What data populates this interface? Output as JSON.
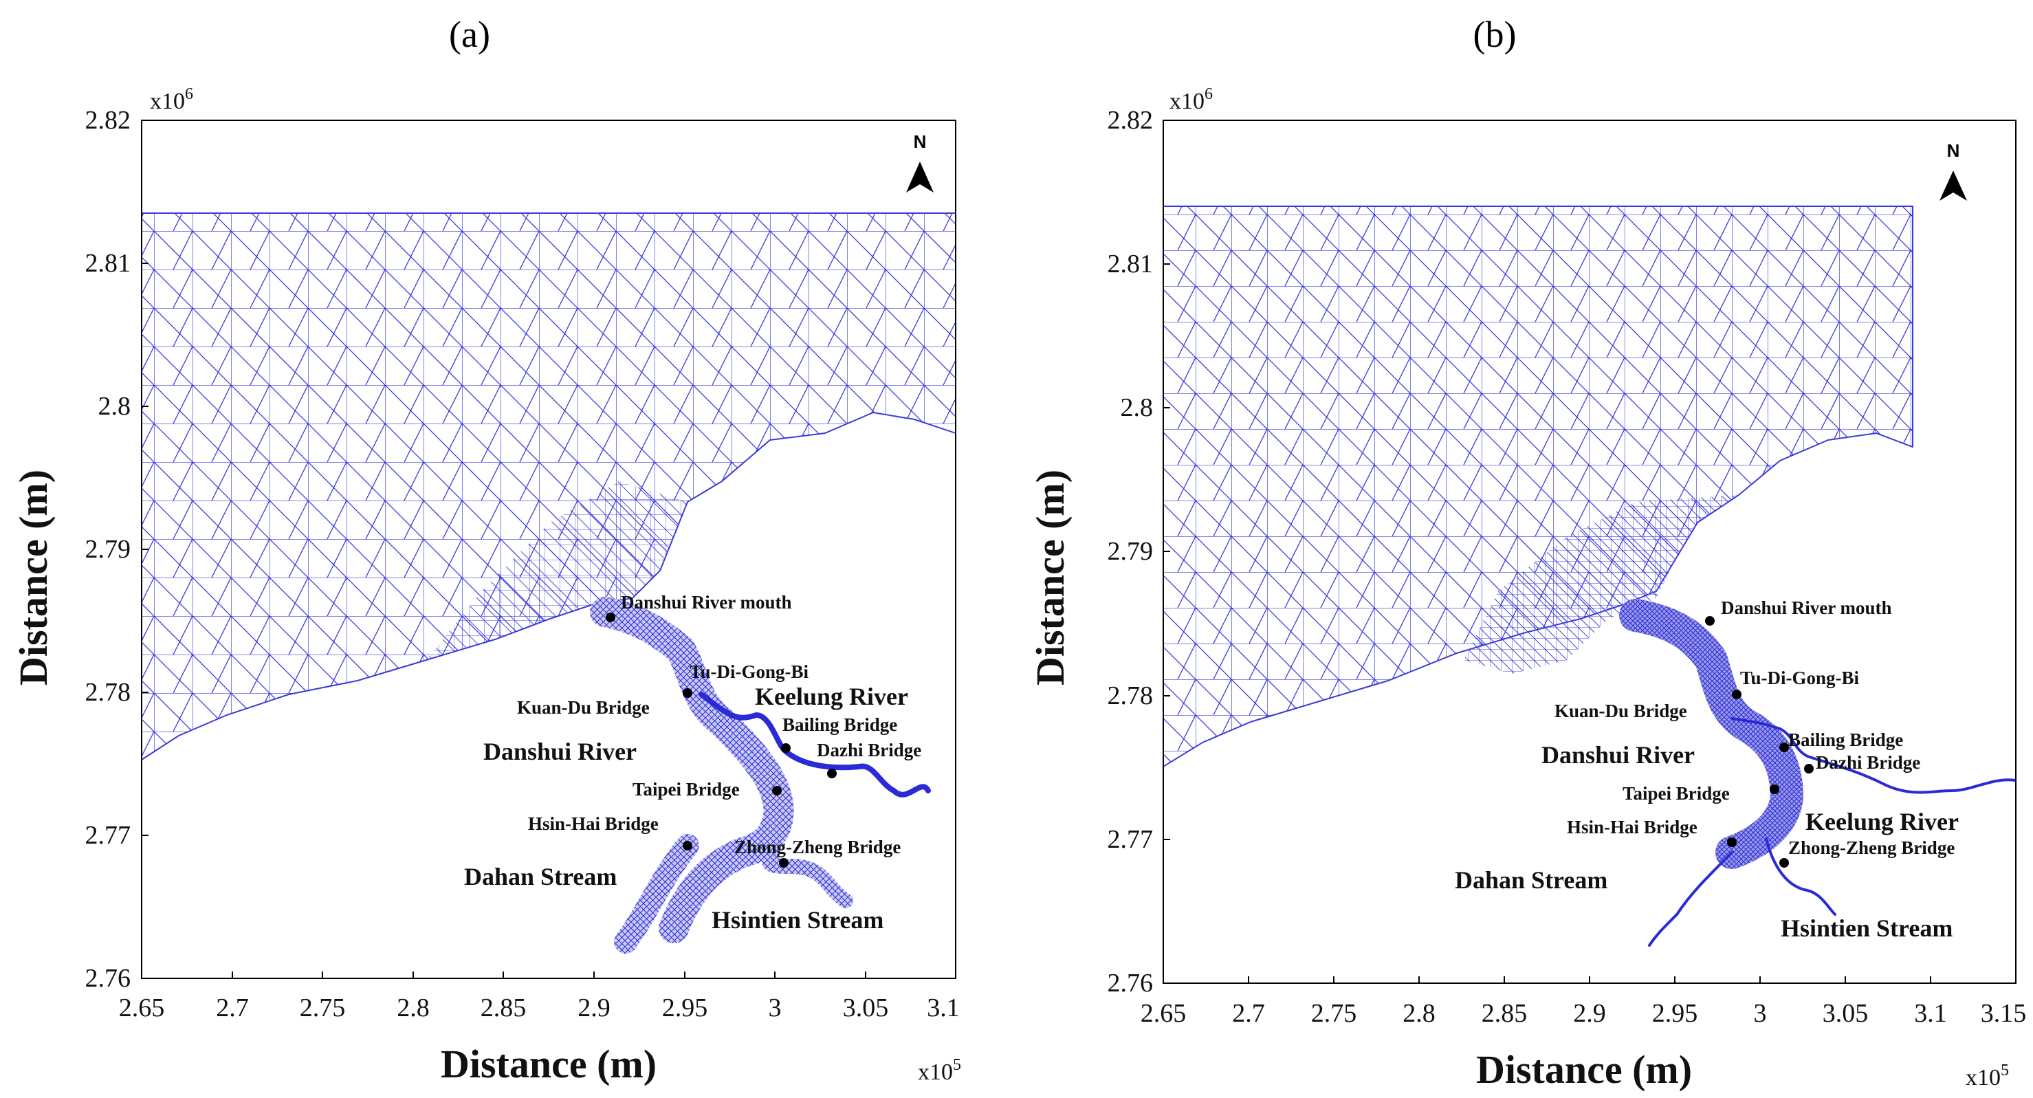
{
  "figure": {
    "panels": [
      {
        "letter": "(a)",
        "x_title": "Distance (m)",
        "y_title": "Distance (m)",
        "x_multiplier": "x10",
        "x_multiplier_exp": "5",
        "y_multiplier": "x10",
        "y_multiplier_exp": "6",
        "x_ticks": [
          "2.65",
          "2.7",
          "2.75",
          "2.8",
          "2.85",
          "2.9",
          "2.95",
          "3",
          "3.05",
          "3.1"
        ],
        "y_ticks": [
          "2.82",
          "2.81",
          "2.8",
          "2.79",
          "2.78",
          "2.77",
          "2.76"
        ],
        "north": "N",
        "labels": {
          "river_mouth": "Danshui River mouth",
          "tu_di": "Tu-Di-Gong-Bi",
          "kuan_du": "Kuan-Du Bridge",
          "keelung": "Keelung River",
          "bailing": "Bailing Bridge",
          "dazhi": "Dazhi Bridge",
          "danshui": "Danshui River",
          "taipei": "Taipei Bridge",
          "hsin_hai": "Hsin-Hai Bridge",
          "zhong_zheng": "Zhong-Zheng Bridge",
          "dahan": "Dahan Stream",
          "hsintien": "Hsintien Stream"
        }
      },
      {
        "letter": "(b)",
        "x_title": "Distance (m)",
        "y_title": "Distance (m)",
        "x_multiplier": "x10",
        "x_multiplier_exp": "5",
        "y_multiplier": "x10",
        "y_multiplier_exp": "6",
        "x_ticks": [
          "2.65",
          "2.7",
          "2.75",
          "2.8",
          "2.85",
          "2.9",
          "2.95",
          "3",
          "3.05",
          "3.1",
          "3.15"
        ],
        "y_ticks": [
          "2.82",
          "2.81",
          "2.8",
          "2.79",
          "2.78",
          "2.77",
          "2.76"
        ],
        "north": "N",
        "labels": {
          "river_mouth": "Danshui River mouth",
          "tu_di": "Tu-Di-Gong-Bi",
          "kuan_du": "Kuan-Du Bridge",
          "keelung": "Keelung River",
          "bailing": "Bailing Bridge",
          "dazhi": "Dazhi Bridge",
          "danshui": "Danshui River",
          "taipei": "Taipei Bridge",
          "hsin_hai": "Hsin-Hai Bridge",
          "zhong_zheng": "Zhong-Zheng Bridge",
          "dahan": "Dahan Stream",
          "hsintien": "Hsintien Stream"
        }
      }
    ],
    "colors": {
      "mesh": "#3a3adc",
      "river": "#2a2ad6",
      "station": "#000000"
    }
  }
}
